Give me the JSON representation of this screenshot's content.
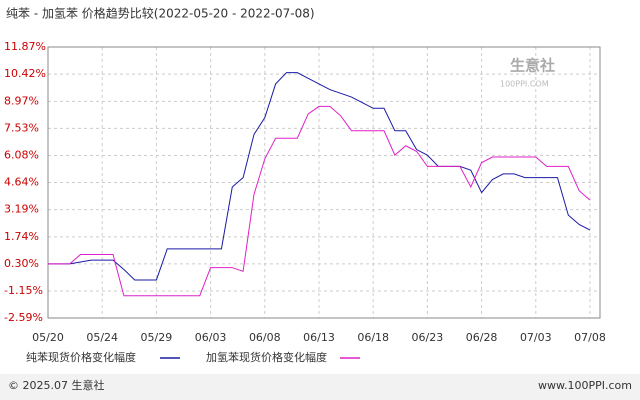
{
  "chart_data": {
    "type": "line",
    "title": "纯苯 - 加氢苯 价格趋势比较(2022-05-20 - 2022-07-08)",
    "categories": [
      "05/20",
      null,
      null,
      null,
      null,
      "05/24",
      null,
      null,
      null,
      null,
      "05/29",
      null,
      null,
      null,
      null,
      "06/03",
      null,
      null,
      null,
      null,
      "06/08",
      null,
      null,
      null,
      null,
      "06/13",
      null,
      null,
      null,
      null,
      "06/18",
      null,
      null,
      null,
      null,
      "06/23",
      null,
      null,
      null,
      null,
      "06/28",
      null,
      null,
      null,
      null,
      "07/03",
      null,
      null,
      null,
      null,
      "07/08"
    ],
    "series": [
      {
        "name": "纯苯现货价格变化幅度",
        "color": "#1a1aa6",
        "values": [
          0.3,
          0.3,
          0.3,
          0.4,
          0.5,
          0.5,
          0.5,
          0.0,
          -0.56,
          -0.56,
          -0.56,
          1.1,
          1.1,
          1.1,
          1.1,
          1.1,
          1.1,
          4.4,
          4.9,
          7.2,
          8.1,
          9.9,
          10.5,
          10.5,
          10.2,
          9.9,
          9.6,
          9.4,
          9.2,
          8.9,
          8.6,
          8.6,
          7.4,
          7.4,
          6.4,
          6.1,
          5.5,
          5.5,
          5.5,
          5.3,
          4.1,
          4.8,
          5.1,
          5.1,
          4.9,
          4.9,
          4.9,
          4.9,
          2.9,
          2.4,
          2.1
        ]
      },
      {
        "name": "加氢苯现货价格变化幅度",
        "color": "#e020c8",
        "values": [
          0.3,
          0.3,
          0.3,
          0.8,
          0.8,
          0.8,
          0.8,
          -1.4,
          -1.4,
          -1.4,
          -1.4,
          -1.4,
          -1.4,
          -1.4,
          -1.4,
          0.1,
          0.1,
          0.1,
          -0.1,
          4.0,
          5.9,
          7.0,
          7.0,
          7.0,
          8.3,
          8.7,
          8.7,
          8.2,
          7.4,
          7.4,
          7.4,
          7.4,
          6.1,
          6.6,
          6.3,
          5.5,
          5.5,
          5.5,
          5.5,
          4.4,
          5.7,
          6.0,
          6.0,
          6.0,
          6.0,
          6.0,
          5.5,
          5.5,
          5.5,
          4.2,
          3.7
        ]
      }
    ],
    "ylim": [
      -2.59,
      11.87
    ],
    "yticks": [
      {
        "value": -2.59,
        "label": "-2.59%"
      },
      {
        "value": -1.15,
        "label": "-1.15%"
      },
      {
        "value": 0.3,
        "label": "0.30%"
      },
      {
        "value": 1.74,
        "label": "1.74%"
      },
      {
        "value": 3.19,
        "label": "3.19%"
      },
      {
        "value": 4.64,
        "label": "4.64%"
      },
      {
        "value": 6.08,
        "label": "6.08%"
      },
      {
        "value": 7.53,
        "label": "7.53%"
      },
      {
        "value": 8.97,
        "label": "8.97%"
      },
      {
        "value": 10.42,
        "label": "10.42%"
      },
      {
        "value": 11.87,
        "label": "11.87%"
      }
    ],
    "grid": true,
    "watermark": {
      "brand": "生意社",
      "site": "100PPI.COM"
    },
    "footer": {
      "left": "© 2025.07 生意社",
      "right": "www.100PPI.com"
    }
  }
}
